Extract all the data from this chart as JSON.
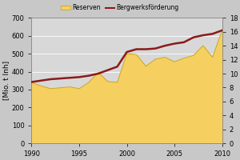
{
  "years": [
    1990,
    1991,
    1992,
    1993,
    1994,
    1995,
    1996,
    1997,
    1998,
    1999,
    2000,
    2001,
    2002,
    2003,
    2004,
    2005,
    2006,
    2007,
    2008,
    2009,
    2010
  ],
  "reserves": [
    340,
    320,
    305,
    310,
    315,
    305,
    340,
    395,
    345,
    340,
    500,
    495,
    430,
    470,
    480,
    455,
    475,
    490,
    545,
    480,
    630
  ],
  "production": [
    8.8,
    9.0,
    9.2,
    9.3,
    9.4,
    9.5,
    9.7,
    10.0,
    10.5,
    11.0,
    13.1,
    13.5,
    13.5,
    13.6,
    14.0,
    14.3,
    14.5,
    15.2,
    15.5,
    15.7,
    16.2
  ],
  "reserves_color": "#f5d060",
  "reserves_edge_color": "#c8a830",
  "production_color": "#8b1a1a",
  "bg_color": "#c8c8c8",
  "plot_bg_color": "#d8d8d8",
  "ylabel_left": "[Mio. t Inh]",
  "ylim_left": [
    0,
    700
  ],
  "ylim_right": [
    0,
    18
  ],
  "xlim": [
    1990,
    2010
  ],
  "yticks_left": [
    0,
    100,
    200,
    300,
    400,
    500,
    600,
    700
  ],
  "yticks_right": [
    0,
    2,
    4,
    6,
    8,
    10,
    12,
    14,
    16,
    18
  ],
  "xticks": [
    1990,
    1995,
    2000,
    2005,
    2010
  ],
  "legend_reserven": "Reserven",
  "legend_production": "Bergwerksförderung",
  "tick_fontsize": 6.0,
  "label_fontsize": 6.5
}
